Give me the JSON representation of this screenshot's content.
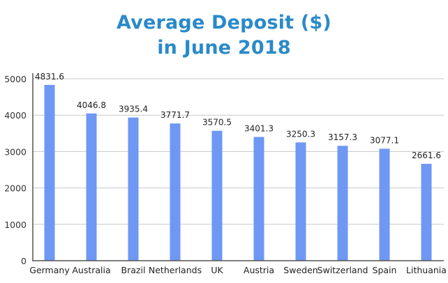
{
  "chart_data": {
    "type": "bar",
    "title": [
      "Average Deposit ($)",
      "in June 2018"
    ],
    "xlabel": "",
    "ylabel": "",
    "categories": [
      "Germany",
      "Australia",
      "Brazil",
      "Netherlands",
      "UK",
      "Austria",
      "Sweden",
      "Switzerland",
      "Spain",
      "Lithuania"
    ],
    "values": [
      4831.6,
      4046.8,
      3935.4,
      3771.7,
      3570.5,
      3401.3,
      3250.3,
      3157.3,
      3077.1,
      2661.6
    ],
    "data_labels": [
      "4831.6",
      "4046.8",
      "3935.4",
      "3771.7",
      "3570.5",
      "3401.3",
      "3250.3",
      "3157.3",
      "3077.1",
      "2661.6"
    ],
    "ylim": [
      0,
      5000
    ],
    "yticks": [
      "0",
      "1000",
      "2000",
      "3000",
      "4000",
      "5000"
    ],
    "grid": true,
    "legend": "none",
    "colors": {
      "bar": "#6e98f4",
      "title": "#2a8ac8",
      "grid": "#c8c8c8",
      "axis": "#555555"
    }
  }
}
